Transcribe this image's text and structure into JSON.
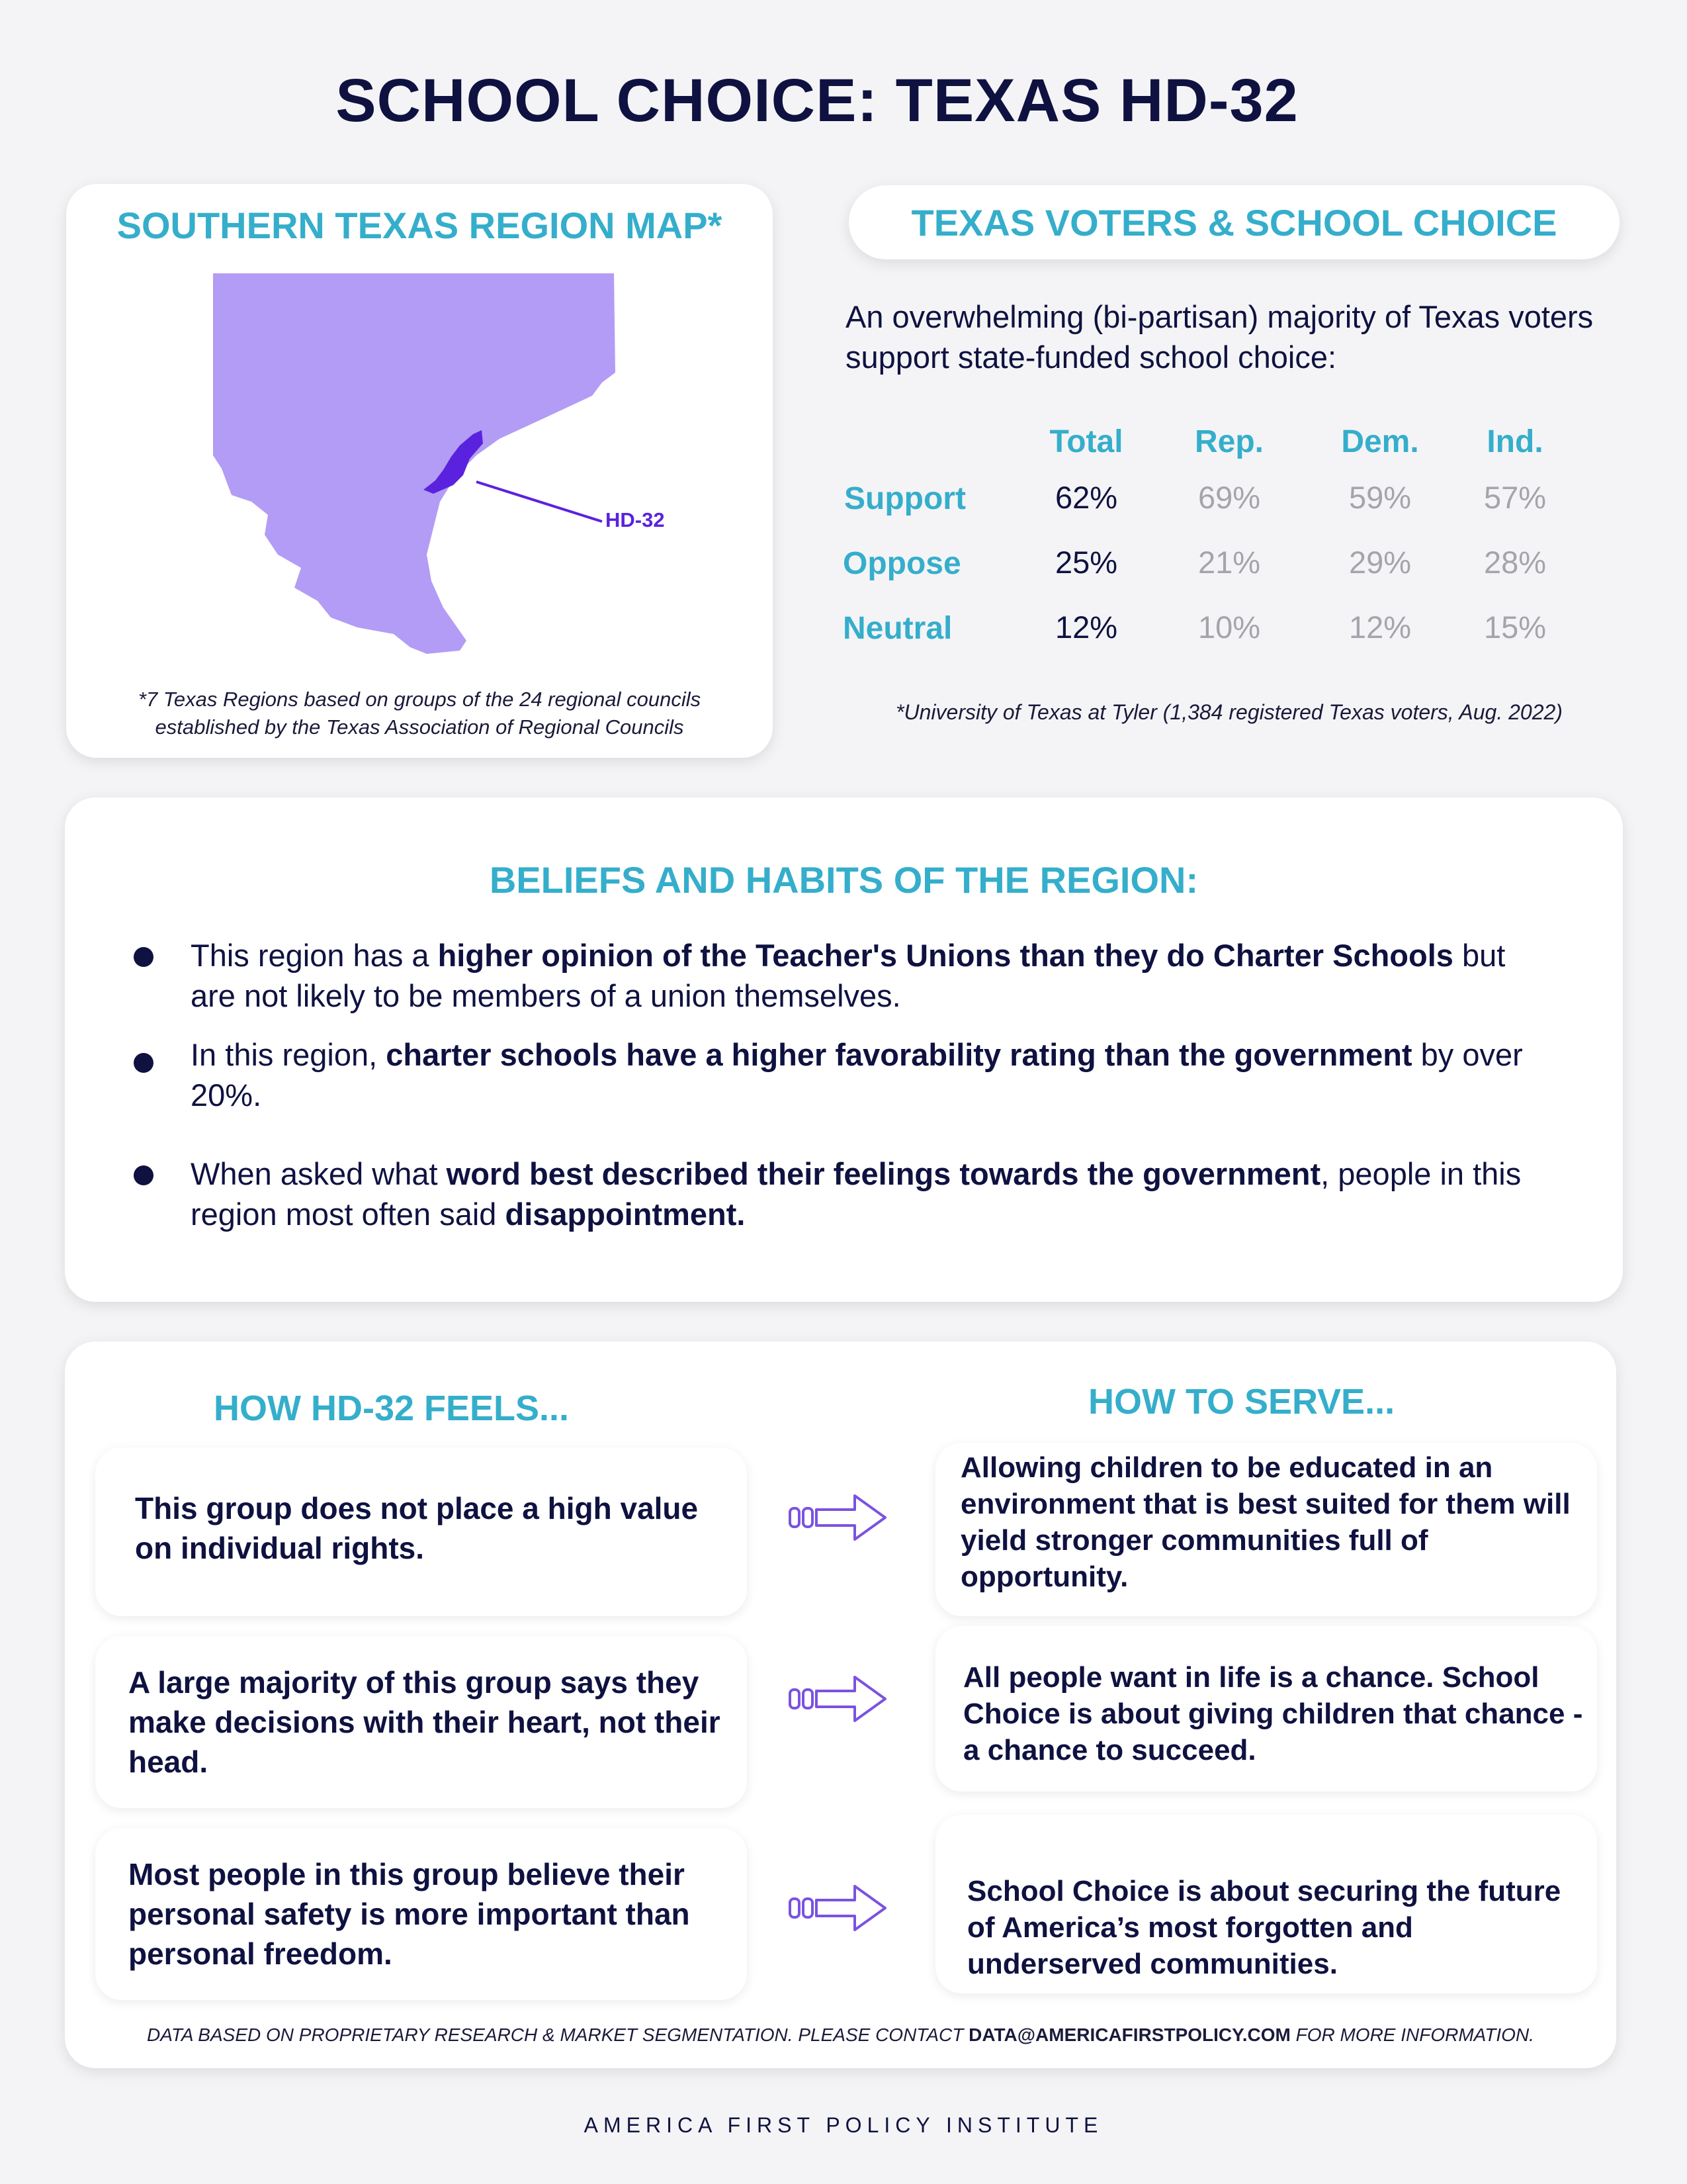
{
  "title": "SCHOOL CHOICE: TEXAS HD-32",
  "map_card": {
    "heading": "SOUTHERN TEXAS REGION MAP*",
    "district_label": "HD-32",
    "footnote_line1": "*7 Texas Regions based on groups of the 24 regional councils",
    "footnote_line2": "established by the Texas Association of Regional Councils",
    "colors": {
      "region": "#b39cf5",
      "district": "#5a22de"
    }
  },
  "voters": {
    "heading": "TEXAS VOTERS & SCHOOL CHOICE",
    "intro": "An overwhelming (bi-partisan) majority of Texas voters support state-funded school choice:",
    "columns": [
      "Total",
      "Rep.",
      "Dem.",
      "Ind."
    ],
    "rows": [
      {
        "label": "Support",
        "values": [
          "62%",
          "69%",
          "59%",
          "57%"
        ]
      },
      {
        "label": "Oppose",
        "values": [
          "25%",
          "21%",
          "29%",
          "28%"
        ]
      },
      {
        "label": "Neutral",
        "values": [
          "12%",
          "10%",
          "12%",
          "15%"
        ]
      }
    ],
    "source": "*University of Texas at Tyler (1,384 registered Texas voters, Aug. 2022)"
  },
  "beliefs": {
    "heading": "BELIEFS AND HABITS OF THE REGION:",
    "items": [
      {
        "pre": "This region has a ",
        "bold": "higher opinion of the Teacher's Unions than they do Charter Schools",
        "post": " but are not likely to be members of a union themselves.",
        "bold2": "",
        "post2": ""
      },
      {
        "pre": "In this region, ",
        "bold": "charter schools have a higher favorability rating than the government",
        "post": " by over 20%.",
        "bold2": "",
        "post2": ""
      },
      {
        "pre": "When asked what ",
        "bold": "word best described their feelings towards the government",
        "post": ", people in this region most often said ",
        "bold2": "disappointment.",
        "post2": ""
      }
    ]
  },
  "feels_serve": {
    "feels_heading": "HOW HD-32 FEELS...",
    "serve_heading": "HOW TO SERVE...",
    "rows": [
      {
        "feels": "This group does not place a high value on individual rights.",
        "serve": "Allowing children to be educated in an environment that is best suited for them will yield stronger communities full of opportunity."
      },
      {
        "feels": "A large majority of this group says they make decisions with their heart, not their head.",
        "serve": "All people want in life is a chance. School Choice is about giving children that chance - a chance to succeed."
      },
      {
        "feels": "Most people in this group believe their personal safety is more important than personal freedom.",
        "serve": "School Choice is about securing the future of America’s most forgotten and underserved communities."
      }
    ],
    "arrow_icon": "arrow-right-icon",
    "arrow_color": "#7b52e0"
  },
  "disclaimer": {
    "pre": "DATA BASED ON PROPRIETARY RESEARCH & MARKET SEGMENTATION. PLEASE CONTACT ",
    "email": "DATA@AMERICAFIRSTPOLICY.COM",
    "post": " FOR MORE INFORMATION."
  },
  "org": "AMERICA FIRST POLICY INSTITUTE",
  "colors": {
    "navy": "#0f1240",
    "teal": "#35aecb"
  }
}
